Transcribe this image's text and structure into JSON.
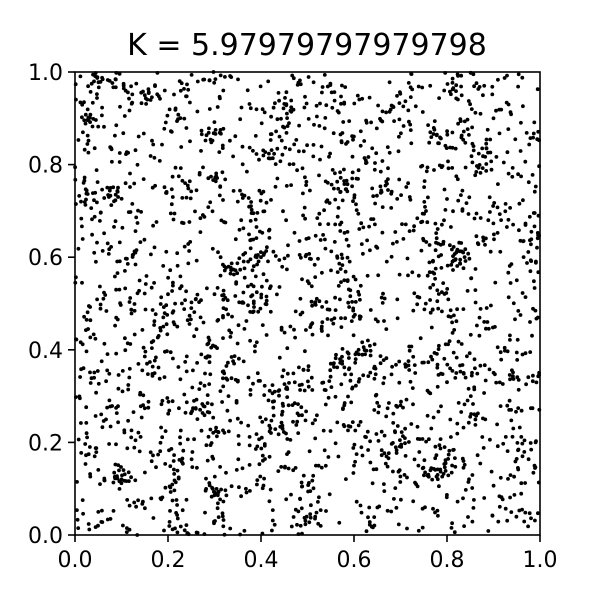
{
  "chart_data": {
    "type": "scatter",
    "title": "K = 5.97979797979798",
    "xlabel": "",
    "ylabel": "",
    "xlim": [
      0.0,
      1.0
    ],
    "ylim": [
      0.0,
      1.0
    ],
    "x_ticks": [
      "0.0",
      "0.2",
      "0.4",
      "0.6",
      "0.8",
      "1.0"
    ],
    "y_ticks": [
      "0.0",
      "0.2",
      "0.4",
      "0.6",
      "0.8",
      "1.0"
    ],
    "grid": false,
    "legend": "none",
    "marker_color": "#000000",
    "approx_point_count": 2500,
    "point_distribution": "dense pseudo-random scatter (standard map orbits) filling the unit square",
    "sample_points": [
      [
        0.25,
        0.49
      ],
      [
        0.23,
        0.5
      ],
      [
        0.21,
        0.48
      ],
      [
        0.19,
        0.47
      ],
      [
        0.27,
        0.47
      ],
      [
        0.26,
        0.51
      ],
      [
        0.22,
        0.45
      ],
      [
        0.18,
        0.43
      ],
      [
        0.3,
        0.52
      ],
      [
        0.2,
        0.52
      ],
      [
        0.55,
        0.37
      ],
      [
        0.57,
        0.38
      ],
      [
        0.59,
        0.36
      ],
      [
        0.61,
        0.4
      ],
      [
        0.63,
        0.42
      ],
      [
        0.82,
        0.35
      ],
      [
        0.84,
        0.34
      ],
      [
        0.8,
        0.33
      ],
      [
        0.86,
        0.36
      ],
      [
        0.78,
        0.32
      ],
      [
        0.05,
        0.05
      ],
      [
        0.1,
        0.12
      ],
      [
        0.15,
        0.95
      ],
      [
        0.35,
        0.72
      ],
      [
        0.45,
        0.88
      ],
      [
        0.65,
        0.62
      ],
      [
        0.72,
        0.73
      ],
      [
        0.9,
        0.9
      ],
      [
        0.95,
        0.55
      ],
      [
        0.48,
        0.22
      ],
      [
        0.6,
        0.15
      ],
      [
        0.7,
        0.28
      ],
      [
        0.88,
        0.08
      ],
      [
        0.33,
        0.3
      ],
      [
        0.4,
        0.6
      ]
    ]
  }
}
